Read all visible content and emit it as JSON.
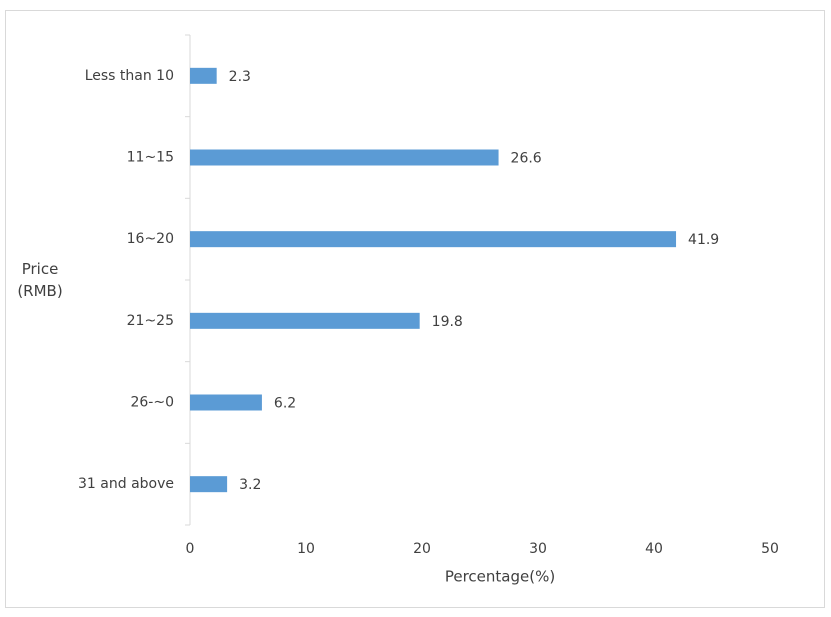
{
  "chart_data": {
    "type": "hbar",
    "xlabel": "Percentage(%)",
    "ylabel": "Price (RMB)",
    "categories": [
      "Less than 10",
      "11~15",
      "16~20",
      "21~25",
      "26-~0",
      "31 and above"
    ],
    "values": [
      2.3,
      26.6,
      41.9,
      19.8,
      6.2,
      3.2
    ],
    "color": "#5b9bd5",
    "xlim": [
      0,
      50
    ],
    "xticks": [
      0,
      10,
      20,
      30,
      40,
      50
    ],
    "grid": false
  }
}
